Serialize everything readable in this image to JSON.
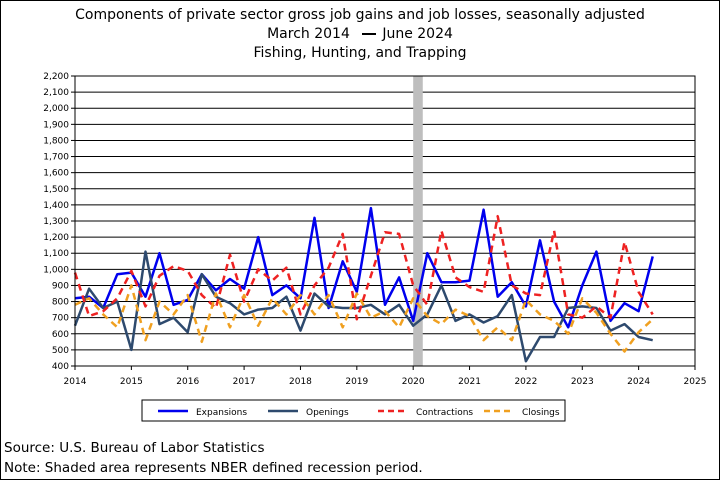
{
  "chart_data": {
    "type": "line",
    "title": "Components of private sector gross job gains and job losses, seasonally adjusted",
    "subtitle_start": "March 2014",
    "subtitle_end": "June 2024",
    "industry": "Fishing, Hunting, and Trapping",
    "xlabel": "",
    "ylabel": "",
    "xlim": [
      2014,
      2025
    ],
    "ylim": [
      400,
      2200
    ],
    "y_ticks": [
      400,
      500,
      600,
      700,
      800,
      900,
      1000,
      1100,
      1200,
      1300,
      1400,
      1500,
      1600,
      1700,
      1800,
      1900,
      2000,
      2100,
      2200
    ],
    "y_tick_labels": [
      "400",
      "500",
      "600",
      "700",
      "800",
      "900",
      "1,000",
      "1,100",
      "1,200",
      "1,300",
      "1,400",
      "1,500",
      "1,600",
      "1,700",
      "1,800",
      "1,900",
      "2,000",
      "2,100",
      "2,200"
    ],
    "x_ticks": [
      2014,
      2015,
      2016,
      2017,
      2018,
      2019,
      2020,
      2021,
      2022,
      2023,
      2024,
      2025
    ],
    "x_tick_labels": [
      "2014",
      "2015",
      "2016",
      "2017",
      "2018",
      "2019",
      "2020",
      "2021",
      "2022",
      "2023",
      "2024",
      "2025"
    ],
    "grid": true,
    "legend_position": "bottom",
    "recession_band": [
      2020.0,
      2020.17
    ],
    "x_start": 2014.0,
    "x_step": 0.25,
    "series": [
      {
        "name": "Expansions",
        "color": "#0000ee",
        "dash": "solid",
        "values": [
          820,
          830,
          760,
          970,
          980,
          830,
          1100,
          780,
          810,
          970,
          870,
          940,
          880,
          1200,
          840,
          900,
          820,
          1320,
          760,
          1050,
          860,
          1380,
          780,
          950,
          680,
          1100,
          920,
          920,
          930,
          1370,
          830,
          920,
          770,
          1180,
          800,
          640,
          900,
          1110,
          680,
          790,
          740,
          1080
        ]
      },
      {
        "name": "Openings",
        "color": "#2e4a6e",
        "dash": "solid",
        "values": [
          650,
          880,
          760,
          800,
          500,
          1110,
          660,
          700,
          610,
          970,
          830,
          790,
          720,
          750,
          760,
          830,
          620,
          850,
          770,
          760,
          760,
          780,
          720,
          780,
          650,
          720,
          900,
          680,
          720,
          670,
          710,
          840,
          430,
          580,
          580,
          760,
          770,
          760,
          620,
          660,
          580,
          560
        ]
      },
      {
        "name": "Contractions",
        "color": "#ee2222",
        "dash": "dash",
        "values": [
          980,
          710,
          740,
          820,
          990,
          770,
          960,
          1020,
          990,
          840,
          760,
          1090,
          800,
          1000,
          930,
          1010,
          720,
          900,
          1010,
          1220,
          690,
          960,
          1230,
          1220,
          900,
          780,
          1240,
          950,
          890,
          860,
          1330,
          900,
          850,
          840,
          1240,
          720,
          700,
          770,
          700,
          1170,
          860,
          720
        ]
      },
      {
        "name": "Closings",
        "color": "#f0a020",
        "dash": "dash",
        "values": [
          780,
          820,
          720,
          640,
          900,
          560,
          800,
          720,
          840,
          550,
          850,
          640,
          840,
          650,
          820,
          720,
          840,
          720,
          840,
          640,
          850,
          700,
          740,
          640,
          820,
          710,
          660,
          750,
          710,
          560,
          640,
          560,
          810,
          720,
          680,
          600,
          820,
          730,
          600,
          490,
          610,
          690
        ]
      }
    ]
  },
  "footer": {
    "source": "Source: U.S. Bureau of Labor Statistics",
    "note": "Note: Shaded area represents NBER defined recession period."
  }
}
